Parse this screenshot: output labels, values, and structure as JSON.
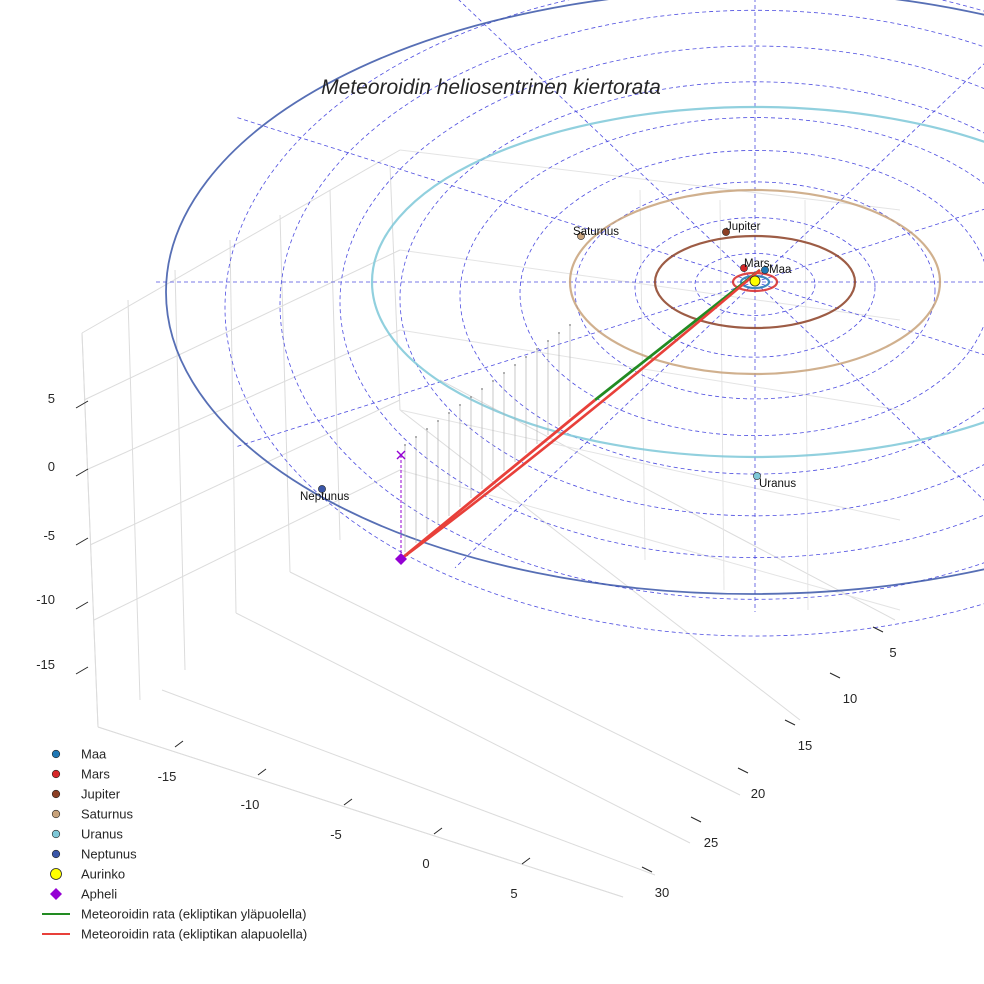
{
  "chart_data": {
    "type": "3d-line",
    "title": "Meteoroidin heliosentrinen kiertorata",
    "axes": {
      "x_ticks": [
        "-15",
        "-10",
        "-5",
        "0",
        "5"
      ],
      "y_ticks": [
        "5",
        "10",
        "15",
        "20",
        "25",
        "30"
      ],
      "z_ticks": [
        "5",
        "0",
        "-5",
        "-10",
        "-15"
      ]
    },
    "planets": [
      {
        "name": "Maa",
        "color": "#1f77b4",
        "orbit_radius_au": 1.0,
        "label": "Maa"
      },
      {
        "name": "Mars",
        "color": "#d62728",
        "orbit_radius_au": 1.52,
        "label": "Mars"
      },
      {
        "name": "Jupiter",
        "color": "#8c3f24",
        "orbit_radius_au": 5.2,
        "label": "Jupiter"
      },
      {
        "name": "Saturnus",
        "color": "#c8a27a",
        "orbit_radius_au": 9.5,
        "label": "Saturnus"
      },
      {
        "name": "Uranus",
        "color": "#7ec8d8",
        "orbit_radius_au": 19.2,
        "label": "Uranus"
      },
      {
        "name": "Neptunus",
        "color": "#3a56a8",
        "orbit_radius_au": 30.1,
        "label": "Neptunus"
      }
    ],
    "sun": {
      "name": "Aurinko",
      "color": "#ffff00"
    },
    "aphelion": {
      "name": "Apheli",
      "color": "#9400d3"
    },
    "meteoroid_path": [
      {
        "name": "Meteoroidin rata (ekliptikan yläpuolella)",
        "color": "#228b22"
      },
      {
        "name": "Meteoroidin rata (ekliptikan alapuolella)",
        "color": "#e8403a"
      }
    ],
    "legend": {
      "position": "bottom-left",
      "entries": [
        {
          "label": "Maa",
          "marker": "circle",
          "color": "#1f77b4"
        },
        {
          "label": "Mars",
          "marker": "circle",
          "color": "#d62728"
        },
        {
          "label": "Jupiter",
          "marker": "circle",
          "color": "#8c3f24"
        },
        {
          "label": "Saturnus",
          "marker": "circle",
          "color": "#c8a27a"
        },
        {
          "label": "Uranus",
          "marker": "circle",
          "color": "#7ec8d8"
        },
        {
          "label": "Neptunus",
          "marker": "circle",
          "color": "#3a56a8"
        },
        {
          "label": "Aurinko",
          "marker": "circle-large",
          "color": "#ffff00"
        },
        {
          "label": "Apheli",
          "marker": "diamond",
          "color": "#9400d3"
        },
        {
          "label": "Meteoroidin rata (ekliptikan yläpuolella)",
          "marker": "line",
          "color": "#228b22"
        },
        {
          "label": "Meteoroidin rata (ekliptikan alapuolella)",
          "marker": "line",
          "color": "#e8403a"
        }
      ]
    },
    "grid": true
  }
}
